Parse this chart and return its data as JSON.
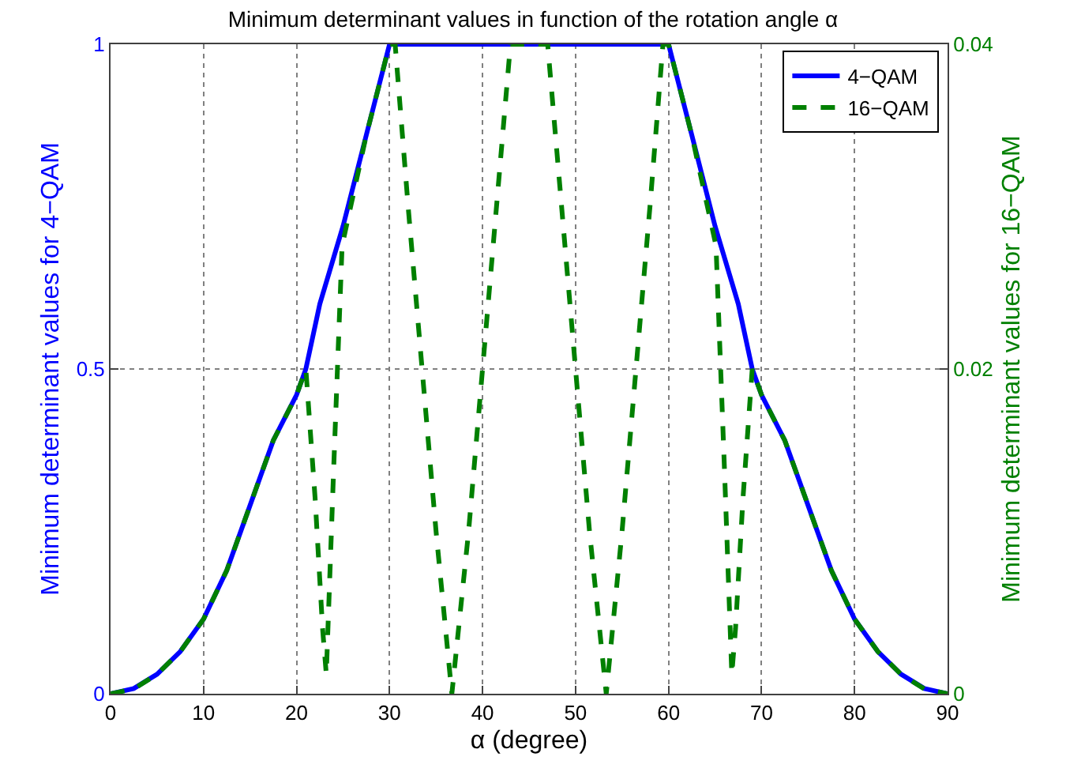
{
  "chart_data": {
    "type": "line",
    "title": "Minimum determinant values in function of the rotation angle α",
    "xlabel": "α (degree)",
    "ylabel": "Minimum determinant values for 4−QAM",
    "y2label": "Minimum determinant values for 16−QAM",
    "xlim": [
      0,
      90
    ],
    "xticks": [
      0,
      10,
      20,
      30,
      40,
      50,
      60,
      70,
      80,
      90
    ],
    "ylim": [
      0,
      1
    ],
    "yticks": [
      0,
      0.5,
      1
    ],
    "y2lim": [
      0,
      0.04
    ],
    "y2ticks": [
      0,
      0.02,
      0.04
    ],
    "grid": true,
    "legend": "top right",
    "marker": "none",
    "series": [
      {
        "name": "4−QAM",
        "color": "#0000ff",
        "line_style": "solid",
        "x": [
          0,
          2.5,
          5,
          7.5,
          10,
          12.5,
          15,
          17.5,
          20,
          21,
          22.5,
          25,
          27.5,
          30,
          60,
          62.5,
          65,
          67.5,
          69,
          70,
          72.5,
          75,
          77.5,
          80,
          82.5,
          85,
          87.5,
          90
        ],
        "values": [
          0,
          0.008,
          0.03,
          0.065,
          0.115,
          0.19,
          0.29,
          0.39,
          0.46,
          0.5,
          0.6,
          0.72,
          0.86,
          1,
          1,
          0.86,
          0.72,
          0.6,
          0.5,
          0.46,
          0.39,
          0.29,
          0.19,
          0.115,
          0.065,
          0.03,
          0.008,
          0
        ]
      },
      {
        "name": "16−QAM",
        "color": "#008000",
        "line_style": "dashed",
        "axis": "y2",
        "x": [
          0,
          2.5,
          5,
          7.5,
          10,
          12.5,
          15,
          17.5,
          20,
          21,
          22,
          22.8,
          23.2,
          24,
          24.9,
          27.5,
          30,
          30.6,
          32,
          33.5,
          35,
          36.7,
          38.5,
          40,
          41.5,
          43,
          47,
          48.5,
          50,
          51.5,
          53.3,
          55,
          56.5,
          58,
          59.4,
          60,
          62.5,
          65.1,
          66,
          66.8,
          67.2,
          68,
          69,
          70,
          72.5,
          75,
          77.5,
          80,
          82.5,
          85,
          87.5,
          90
        ],
        "values": [
          0,
          0.0003,
          0.0012,
          0.0026,
          0.0046,
          0.0076,
          0.0116,
          0.0156,
          0.0184,
          0.02,
          0.012,
          0.004,
          0.0012,
          0.014,
          0.0276,
          0.0344,
          0.04,
          0.04,
          0.03,
          0.02,
          0.01,
          0,
          0.01,
          0.02,
          0.03,
          0.04,
          0.04,
          0.03,
          0.02,
          0.01,
          0,
          0.01,
          0.02,
          0.03,
          0.04,
          0.04,
          0.0344,
          0.0276,
          0.014,
          0.0012,
          0.004,
          0.012,
          0.02,
          0.0184,
          0.0156,
          0.0116,
          0.0076,
          0.0046,
          0.0026,
          0.0012,
          0.0003,
          0
        ]
      }
    ]
  }
}
